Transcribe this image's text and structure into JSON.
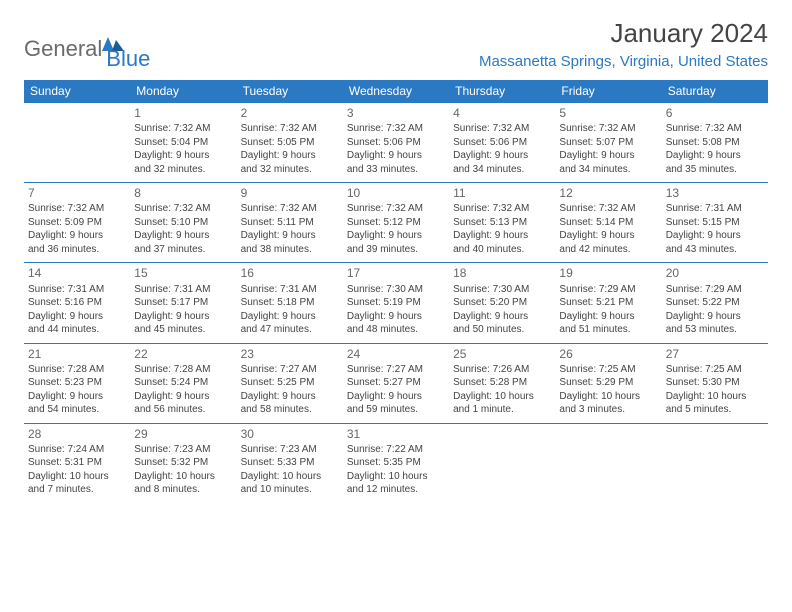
{
  "brand": {
    "part1": "General",
    "part2": "Blue"
  },
  "title": "January 2024",
  "location": "Massanetta Springs, Virginia, United States",
  "colors": {
    "accent": "#2b79c2",
    "header_text": "#ffffff",
    "body_text": "#444444",
    "muted_text": "#6b6b6b",
    "background": "#ffffff"
  },
  "day_headers": [
    "Sunday",
    "Monday",
    "Tuesday",
    "Wednesday",
    "Thursday",
    "Friday",
    "Saturday"
  ],
  "weeks": [
    [
      null,
      {
        "n": "1",
        "sr": "Sunrise: 7:32 AM",
        "ss": "Sunset: 5:04 PM",
        "d1": "Daylight: 9 hours",
        "d2": "and 32 minutes."
      },
      {
        "n": "2",
        "sr": "Sunrise: 7:32 AM",
        "ss": "Sunset: 5:05 PM",
        "d1": "Daylight: 9 hours",
        "d2": "and 32 minutes."
      },
      {
        "n": "3",
        "sr": "Sunrise: 7:32 AM",
        "ss": "Sunset: 5:06 PM",
        "d1": "Daylight: 9 hours",
        "d2": "and 33 minutes."
      },
      {
        "n": "4",
        "sr": "Sunrise: 7:32 AM",
        "ss": "Sunset: 5:06 PM",
        "d1": "Daylight: 9 hours",
        "d2": "and 34 minutes."
      },
      {
        "n": "5",
        "sr": "Sunrise: 7:32 AM",
        "ss": "Sunset: 5:07 PM",
        "d1": "Daylight: 9 hours",
        "d2": "and 34 minutes."
      },
      {
        "n": "6",
        "sr": "Sunrise: 7:32 AM",
        "ss": "Sunset: 5:08 PM",
        "d1": "Daylight: 9 hours",
        "d2": "and 35 minutes."
      }
    ],
    [
      {
        "n": "7",
        "sr": "Sunrise: 7:32 AM",
        "ss": "Sunset: 5:09 PM",
        "d1": "Daylight: 9 hours",
        "d2": "and 36 minutes."
      },
      {
        "n": "8",
        "sr": "Sunrise: 7:32 AM",
        "ss": "Sunset: 5:10 PM",
        "d1": "Daylight: 9 hours",
        "d2": "and 37 minutes."
      },
      {
        "n": "9",
        "sr": "Sunrise: 7:32 AM",
        "ss": "Sunset: 5:11 PM",
        "d1": "Daylight: 9 hours",
        "d2": "and 38 minutes."
      },
      {
        "n": "10",
        "sr": "Sunrise: 7:32 AM",
        "ss": "Sunset: 5:12 PM",
        "d1": "Daylight: 9 hours",
        "d2": "and 39 minutes."
      },
      {
        "n": "11",
        "sr": "Sunrise: 7:32 AM",
        "ss": "Sunset: 5:13 PM",
        "d1": "Daylight: 9 hours",
        "d2": "and 40 minutes."
      },
      {
        "n": "12",
        "sr": "Sunrise: 7:32 AM",
        "ss": "Sunset: 5:14 PM",
        "d1": "Daylight: 9 hours",
        "d2": "and 42 minutes."
      },
      {
        "n": "13",
        "sr": "Sunrise: 7:31 AM",
        "ss": "Sunset: 5:15 PM",
        "d1": "Daylight: 9 hours",
        "d2": "and 43 minutes."
      }
    ],
    [
      {
        "n": "14",
        "sr": "Sunrise: 7:31 AM",
        "ss": "Sunset: 5:16 PM",
        "d1": "Daylight: 9 hours",
        "d2": "and 44 minutes."
      },
      {
        "n": "15",
        "sr": "Sunrise: 7:31 AM",
        "ss": "Sunset: 5:17 PM",
        "d1": "Daylight: 9 hours",
        "d2": "and 45 minutes."
      },
      {
        "n": "16",
        "sr": "Sunrise: 7:31 AM",
        "ss": "Sunset: 5:18 PM",
        "d1": "Daylight: 9 hours",
        "d2": "and 47 minutes."
      },
      {
        "n": "17",
        "sr": "Sunrise: 7:30 AM",
        "ss": "Sunset: 5:19 PM",
        "d1": "Daylight: 9 hours",
        "d2": "and 48 minutes."
      },
      {
        "n": "18",
        "sr": "Sunrise: 7:30 AM",
        "ss": "Sunset: 5:20 PM",
        "d1": "Daylight: 9 hours",
        "d2": "and 50 minutes."
      },
      {
        "n": "19",
        "sr": "Sunrise: 7:29 AM",
        "ss": "Sunset: 5:21 PM",
        "d1": "Daylight: 9 hours",
        "d2": "and 51 minutes."
      },
      {
        "n": "20",
        "sr": "Sunrise: 7:29 AM",
        "ss": "Sunset: 5:22 PM",
        "d1": "Daylight: 9 hours",
        "d2": "and 53 minutes."
      }
    ],
    [
      {
        "n": "21",
        "sr": "Sunrise: 7:28 AM",
        "ss": "Sunset: 5:23 PM",
        "d1": "Daylight: 9 hours",
        "d2": "and 54 minutes."
      },
      {
        "n": "22",
        "sr": "Sunrise: 7:28 AM",
        "ss": "Sunset: 5:24 PM",
        "d1": "Daylight: 9 hours",
        "d2": "and 56 minutes."
      },
      {
        "n": "23",
        "sr": "Sunrise: 7:27 AM",
        "ss": "Sunset: 5:25 PM",
        "d1": "Daylight: 9 hours",
        "d2": "and 58 minutes."
      },
      {
        "n": "24",
        "sr": "Sunrise: 7:27 AM",
        "ss": "Sunset: 5:27 PM",
        "d1": "Daylight: 9 hours",
        "d2": "and 59 minutes."
      },
      {
        "n": "25",
        "sr": "Sunrise: 7:26 AM",
        "ss": "Sunset: 5:28 PM",
        "d1": "Daylight: 10 hours",
        "d2": "and 1 minute."
      },
      {
        "n": "26",
        "sr": "Sunrise: 7:25 AM",
        "ss": "Sunset: 5:29 PM",
        "d1": "Daylight: 10 hours",
        "d2": "and 3 minutes."
      },
      {
        "n": "27",
        "sr": "Sunrise: 7:25 AM",
        "ss": "Sunset: 5:30 PM",
        "d1": "Daylight: 10 hours",
        "d2": "and 5 minutes."
      }
    ],
    [
      {
        "n": "28",
        "sr": "Sunrise: 7:24 AM",
        "ss": "Sunset: 5:31 PM",
        "d1": "Daylight: 10 hours",
        "d2": "and 7 minutes."
      },
      {
        "n": "29",
        "sr": "Sunrise: 7:23 AM",
        "ss": "Sunset: 5:32 PM",
        "d1": "Daylight: 10 hours",
        "d2": "and 8 minutes."
      },
      {
        "n": "30",
        "sr": "Sunrise: 7:23 AM",
        "ss": "Sunset: 5:33 PM",
        "d1": "Daylight: 10 hours",
        "d2": "and 10 minutes."
      },
      {
        "n": "31",
        "sr": "Sunrise: 7:22 AM",
        "ss": "Sunset: 5:35 PM",
        "d1": "Daylight: 10 hours",
        "d2": "and 12 minutes."
      },
      null,
      null,
      null
    ]
  ]
}
